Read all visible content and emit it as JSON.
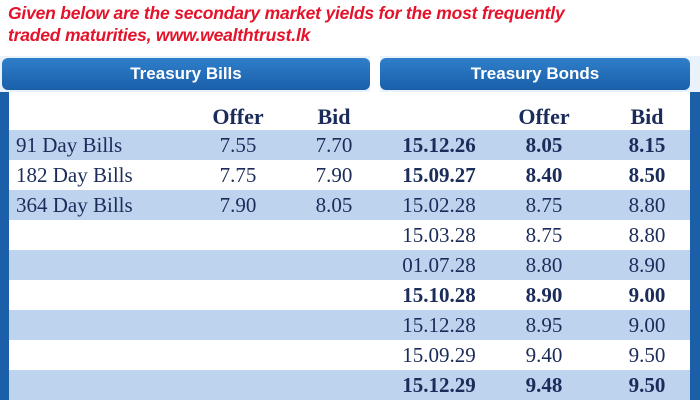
{
  "caption": {
    "line1": "Given below are the secondary market yields for the most frequently",
    "line2": "traded maturities, www.wealthtrust.lk"
  },
  "headers": {
    "bills": "Treasury Bills",
    "bonds": "Treasury Bonds"
  },
  "columns": {
    "bills_offer": "Offer",
    "bills_bid": "Bid",
    "bonds_offer": "Offer",
    "bonds_bid": "Bid"
  },
  "rows": [
    {
      "bill": "91 Day Bills",
      "bill_offer": "7.55",
      "bill_bid": "7.70",
      "maturity": "15.12.26",
      "offer": "8.05",
      "bid": "8.15",
      "bond_bold": true
    },
    {
      "bill": "182 Day Bills",
      "bill_offer": "7.75",
      "bill_bid": "7.90",
      "maturity": "15.09.27",
      "offer": "8.40",
      "bid": "8.50",
      "bond_bold": true
    },
    {
      "bill": "364 Day Bills",
      "bill_offer": "7.90",
      "bill_bid": "8.05",
      "maturity": "15.02.28",
      "offer": "8.75",
      "bid": "8.80",
      "bond_bold": false
    },
    {
      "bill": "",
      "bill_offer": "",
      "bill_bid": "",
      "maturity": "15.03.28",
      "offer": "8.75",
      "bid": "8.80",
      "bond_bold": false
    },
    {
      "bill": "",
      "bill_offer": "",
      "bill_bid": "",
      "maturity": "01.07.28",
      "offer": "8.80",
      "bid": "8.90",
      "bond_bold": false
    },
    {
      "bill": "",
      "bill_offer": "",
      "bill_bid": "",
      "maturity": "15.10.28",
      "offer": "8.90",
      "bid": "9.00",
      "bond_bold": true
    },
    {
      "bill": "",
      "bill_offer": "",
      "bill_bid": "",
      "maturity": "15.12.28",
      "offer": "8.95",
      "bid": "9.00",
      "bond_bold": false
    },
    {
      "bill": "",
      "bill_offer": "",
      "bill_bid": "",
      "maturity": "15.09.29",
      "offer": "9.40",
      "bid": "9.50",
      "bond_bold": false
    },
    {
      "bill": "",
      "bill_offer": "",
      "bill_bid": "",
      "maturity": "15.12.29",
      "offer": "9.48",
      "bid": "9.50",
      "bond_bold": true
    }
  ]
}
